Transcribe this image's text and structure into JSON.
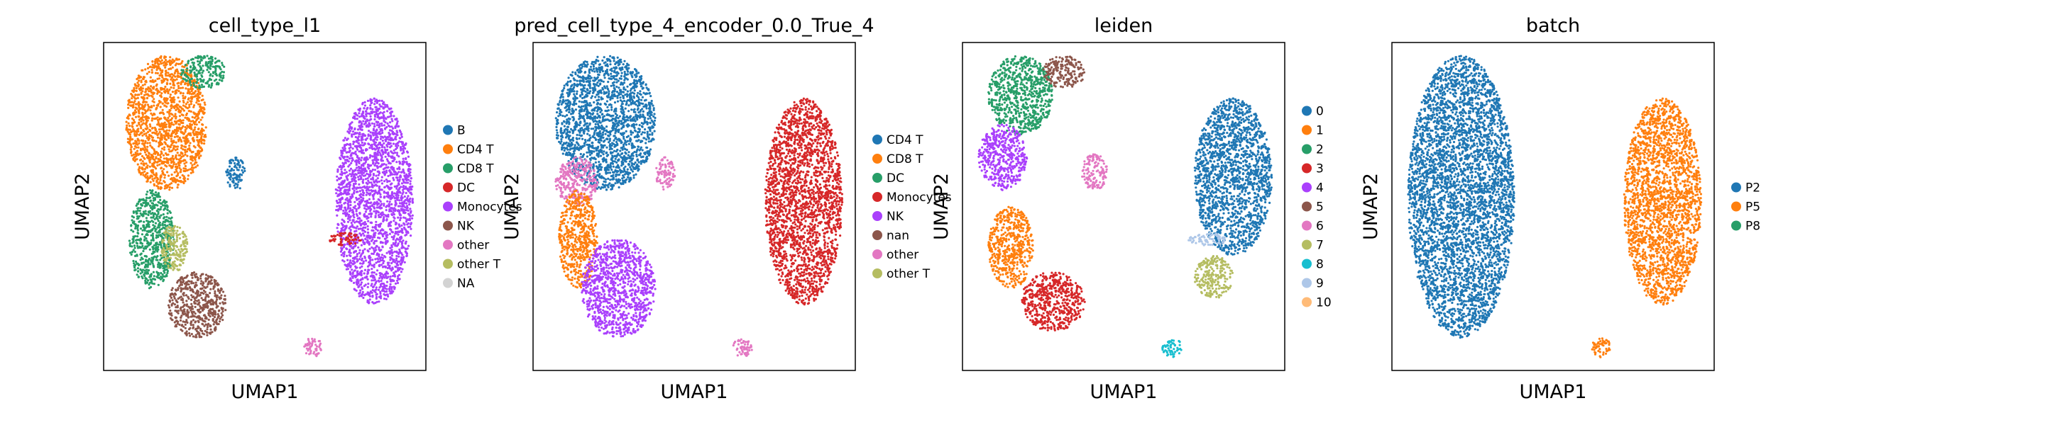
{
  "chart_data": [
    {
      "type": "scatter",
      "title": "cell_type_l1",
      "xlabel": "UMAP1",
      "ylabel": "UMAP2",
      "ticks": "none",
      "legend_position": "right",
      "legend": [
        {
          "label": "B",
          "color": "#1f77b4"
        },
        {
          "label": "CD4 T",
          "color": "#ff7f0e"
        },
        {
          "label": "CD8 T",
          "color": "#279e68"
        },
        {
          "label": "DC",
          "color": "#d62728"
        },
        {
          "label": "Monocytes",
          "color": "#aa40fc"
        },
        {
          "label": "NK",
          "color": "#8c564b"
        },
        {
          "label": "other",
          "color": "#e377c2"
        },
        {
          "label": "other T",
          "color": "#b5bd61"
        },
        {
          "label": "NA",
          "color": "#d3d3d3"
        }
      ],
      "clusters": [
        {
          "region": "upper-left",
          "category": "CD4 T",
          "x": [
            0.07,
            0.32
          ],
          "y": [
            0.55,
            0.96
          ]
        },
        {
          "region": "top",
          "category": "CD8 T",
          "x": [
            0.24,
            0.38
          ],
          "y": [
            0.86,
            0.96
          ]
        },
        {
          "region": "lower-left",
          "category": "CD8 T",
          "x": [
            0.08,
            0.22
          ],
          "y": [
            0.25,
            0.55
          ]
        },
        {
          "region": "lower-left",
          "category": "other T",
          "x": [
            0.18,
            0.26
          ],
          "y": [
            0.3,
            0.45
          ]
        },
        {
          "region": "bottom-center",
          "category": "NK",
          "x": [
            0.2,
            0.38
          ],
          "y": [
            0.1,
            0.3
          ]
        },
        {
          "region": "center",
          "category": "B",
          "x": [
            0.38,
            0.44
          ],
          "y": [
            0.55,
            0.65
          ]
        },
        {
          "region": "right",
          "category": "Monocytes",
          "x": [
            0.72,
            0.96
          ],
          "y": [
            0.2,
            0.83
          ]
        },
        {
          "region": "right-center",
          "category": "DC",
          "x": [
            0.7,
            0.8
          ],
          "y": [
            0.38,
            0.42
          ]
        },
        {
          "region": "bottom",
          "category": "other",
          "x": [
            0.62,
            0.68
          ],
          "y": [
            0.04,
            0.1
          ]
        }
      ]
    },
    {
      "type": "scatter",
      "title": "pred_cell_type_4_encoder_0.0_True_4",
      "xlabel": "UMAP1",
      "ylabel": "UMAP2",
      "ticks": "none",
      "legend_position": "right",
      "legend": [
        {
          "label": "CD4 T",
          "color": "#1f77b4"
        },
        {
          "label": "CD8 T",
          "color": "#ff7f0e"
        },
        {
          "label": "DC",
          "color": "#279e68"
        },
        {
          "label": "Monocytes",
          "color": "#d62728"
        },
        {
          "label": "NK",
          "color": "#aa40fc"
        },
        {
          "label": "nan",
          "color": "#8c564b"
        },
        {
          "label": "other",
          "color": "#e377c2"
        },
        {
          "label": "other T",
          "color": "#b5bd61"
        }
      ],
      "clusters": [
        {
          "region": "upper-left",
          "category": "CD4 T",
          "x": [
            0.07,
            0.38
          ],
          "y": [
            0.55,
            0.96
          ]
        },
        {
          "region": "left",
          "category": "other",
          "x": [
            0.07,
            0.2
          ],
          "y": [
            0.5,
            0.65
          ]
        },
        {
          "region": "lower-left",
          "category": "CD8 T",
          "x": [
            0.08,
            0.2
          ],
          "y": [
            0.25,
            0.55
          ]
        },
        {
          "region": "bottom-center",
          "category": "NK",
          "x": [
            0.15,
            0.38
          ],
          "y": [
            0.1,
            0.4
          ]
        },
        {
          "region": "center",
          "category": "other",
          "x": [
            0.38,
            0.44
          ],
          "y": [
            0.55,
            0.65
          ]
        },
        {
          "region": "right",
          "category": "Monocytes",
          "x": [
            0.72,
            0.96
          ],
          "y": [
            0.2,
            0.83
          ]
        },
        {
          "region": "bottom",
          "category": "other",
          "x": [
            0.62,
            0.68
          ],
          "y": [
            0.04,
            0.1
          ]
        }
      ]
    },
    {
      "type": "scatter",
      "title": "leiden",
      "xlabel": "UMAP1",
      "ylabel": "UMAP2",
      "ticks": "none",
      "legend_position": "right",
      "legend": [
        {
          "label": "0",
          "color": "#1f77b4"
        },
        {
          "label": "1",
          "color": "#ff7f0e"
        },
        {
          "label": "2",
          "color": "#279e68"
        },
        {
          "label": "3",
          "color": "#d62728"
        },
        {
          "label": "4",
          "color": "#aa40fc"
        },
        {
          "label": "5",
          "color": "#8c564b"
        },
        {
          "label": "6",
          "color": "#e377c2"
        },
        {
          "label": "7",
          "color": "#b5bd61"
        },
        {
          "label": "8",
          "color": "#17becf"
        },
        {
          "label": "9",
          "color": "#aec7e8"
        },
        {
          "label": "10",
          "color": "#ffbb78"
        }
      ],
      "clusters": [
        {
          "region": "upper-left",
          "category": "2",
          "x": [
            0.08,
            0.28
          ],
          "y": [
            0.72,
            0.96
          ]
        },
        {
          "region": "top",
          "category": "5",
          "x": [
            0.25,
            0.38
          ],
          "y": [
            0.86,
            0.96
          ]
        },
        {
          "region": "left",
          "category": "4",
          "x": [
            0.05,
            0.2
          ],
          "y": [
            0.55,
            0.75
          ]
        },
        {
          "region": "lower-left",
          "category": "1",
          "x": [
            0.08,
            0.22
          ],
          "y": [
            0.25,
            0.5
          ]
        },
        {
          "region": "bottom-center",
          "category": "3",
          "x": [
            0.18,
            0.38
          ],
          "y": [
            0.12,
            0.3
          ]
        },
        {
          "region": "center",
          "category": "6",
          "x": [
            0.37,
            0.45
          ],
          "y": [
            0.55,
            0.66
          ]
        },
        {
          "region": "right",
          "category": "0",
          "x": [
            0.72,
            0.96
          ],
          "y": [
            0.35,
            0.83
          ]
        },
        {
          "region": "right-center",
          "category": "9",
          "x": [
            0.7,
            0.82
          ],
          "y": [
            0.38,
            0.42
          ]
        },
        {
          "region": "lower-right",
          "category": "7",
          "x": [
            0.72,
            0.84
          ],
          "y": [
            0.22,
            0.35
          ]
        },
        {
          "region": "bottom",
          "category": "8",
          "x": [
            0.62,
            0.68
          ],
          "y": [
            0.04,
            0.1
          ]
        }
      ]
    },
    {
      "type": "scatter",
      "title": "batch",
      "xlabel": "UMAP1",
      "ylabel": "UMAP2",
      "ticks": "none",
      "legend_position": "right",
      "legend": [
        {
          "label": "P2",
          "color": "#1f77b4"
        },
        {
          "label": "P5",
          "color": "#ff7f0e"
        },
        {
          "label": "P8",
          "color": "#279e68"
        }
      ],
      "clusters": [
        {
          "region": "left",
          "category": "P2",
          "x": [
            0.05,
            0.38
          ],
          "y": [
            0.1,
            0.96
          ]
        },
        {
          "region": "right",
          "category": "P5",
          "x": [
            0.72,
            0.96
          ],
          "y": [
            0.2,
            0.83
          ]
        },
        {
          "region": "bottom",
          "category": "P5",
          "x": [
            0.62,
            0.68
          ],
          "y": [
            0.04,
            0.1
          ]
        }
      ]
    }
  ]
}
